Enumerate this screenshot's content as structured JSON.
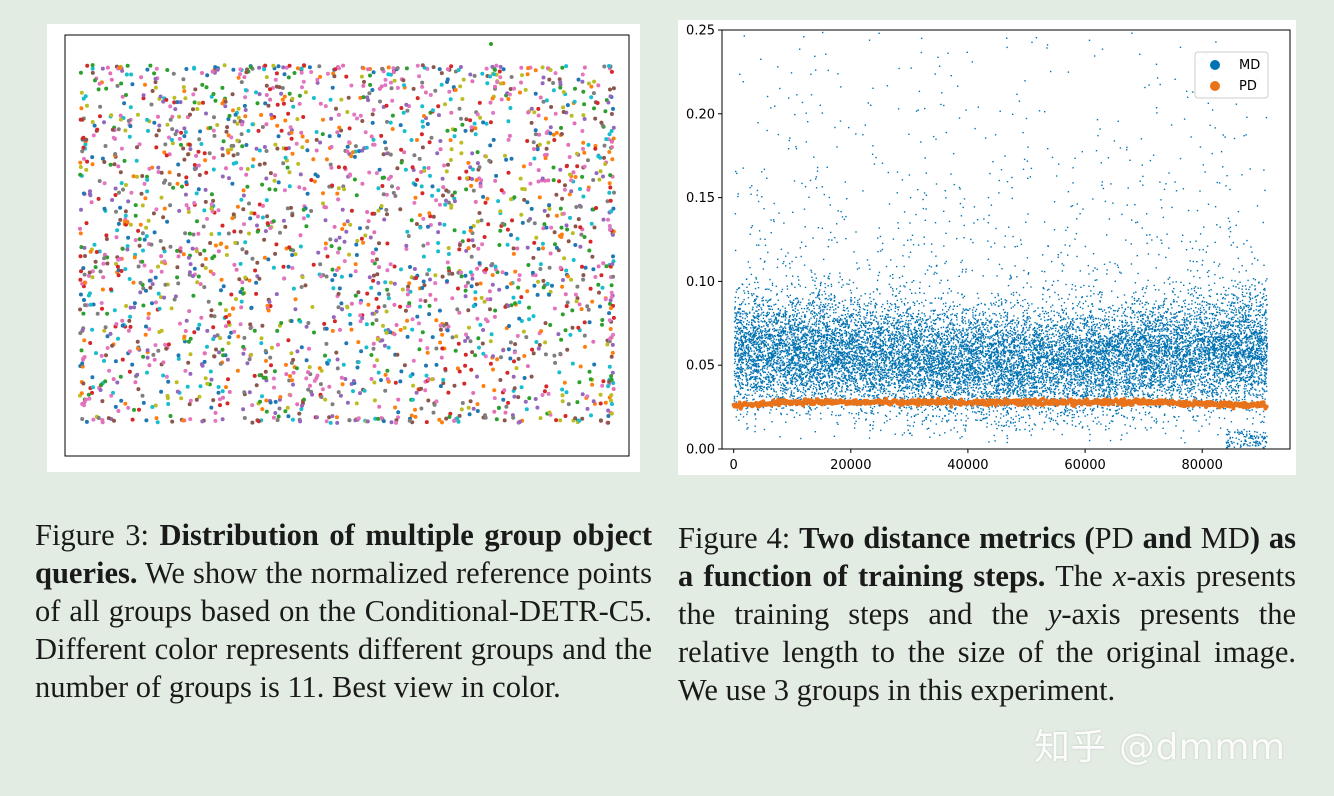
{
  "figure3": {
    "caption": {
      "label": "Figure 3:",
      "title": "Distribution of multiple group object queries.",
      "body": "We show the normalized reference points of all groups based on the Conditional-DETR-C5. Different color represents different groups and the number of groups is 11. Best view in color."
    },
    "colors": [
      "#1f77b4",
      "#ff7f0e",
      "#2ca02c",
      "#d62728",
      "#9467bd",
      "#8c564b",
      "#e377c2",
      "#7f7f7f",
      "#bcbd22",
      "#17becf",
      "#e36fb8"
    ]
  },
  "figure4": {
    "caption": {
      "label": "Figure 4:",
      "title_part1": "Two distance metrics (",
      "title_pd": "PD",
      "title_and": " and ",
      "title_md": "MD",
      "title_part2": ") as a function of training steps.",
      "body_the": "The",
      "x_var": "x",
      "body_1": "-axis presents the training steps and the",
      "y_var": "y",
      "body_2": "-axis presents the relative length to the size of the original image. We use 3 groups in this experiment."
    }
  },
  "chart_data": {
    "type": "scatter",
    "xlim": [
      -2000,
      95000
    ],
    "ylim": [
      0,
      0.25
    ],
    "x_ticks": [
      0,
      20000,
      40000,
      60000,
      80000
    ],
    "x_tick_labels": [
      "0",
      "20000",
      "40000",
      "60000",
      "80000"
    ],
    "y_ticks": [
      0.0,
      0.05,
      0.1,
      0.15,
      0.2,
      0.25
    ],
    "y_tick_labels": [
      "0.00",
      "0.05",
      "0.10",
      "0.15",
      "0.20",
      "0.25"
    ],
    "legend_position": "top-right",
    "series": [
      {
        "name": "MD",
        "color": "#0072b2",
        "x_range": [
          0,
          91000
        ],
        "y_center": 0.055,
        "y_spread": 0.03,
        "y_max": 0.25
      },
      {
        "name": "PD",
        "color": "#e8731a",
        "x": [
          0,
          10000,
          20000,
          30000,
          40000,
          50000,
          60000,
          70000,
          80000,
          91000
        ],
        "y": [
          0.026,
          0.028,
          0.028,
          0.028,
          0.028,
          0.028,
          0.028,
          0.028,
          0.027,
          0.026
        ]
      }
    ]
  },
  "watermark": "知乎 @dmmm"
}
